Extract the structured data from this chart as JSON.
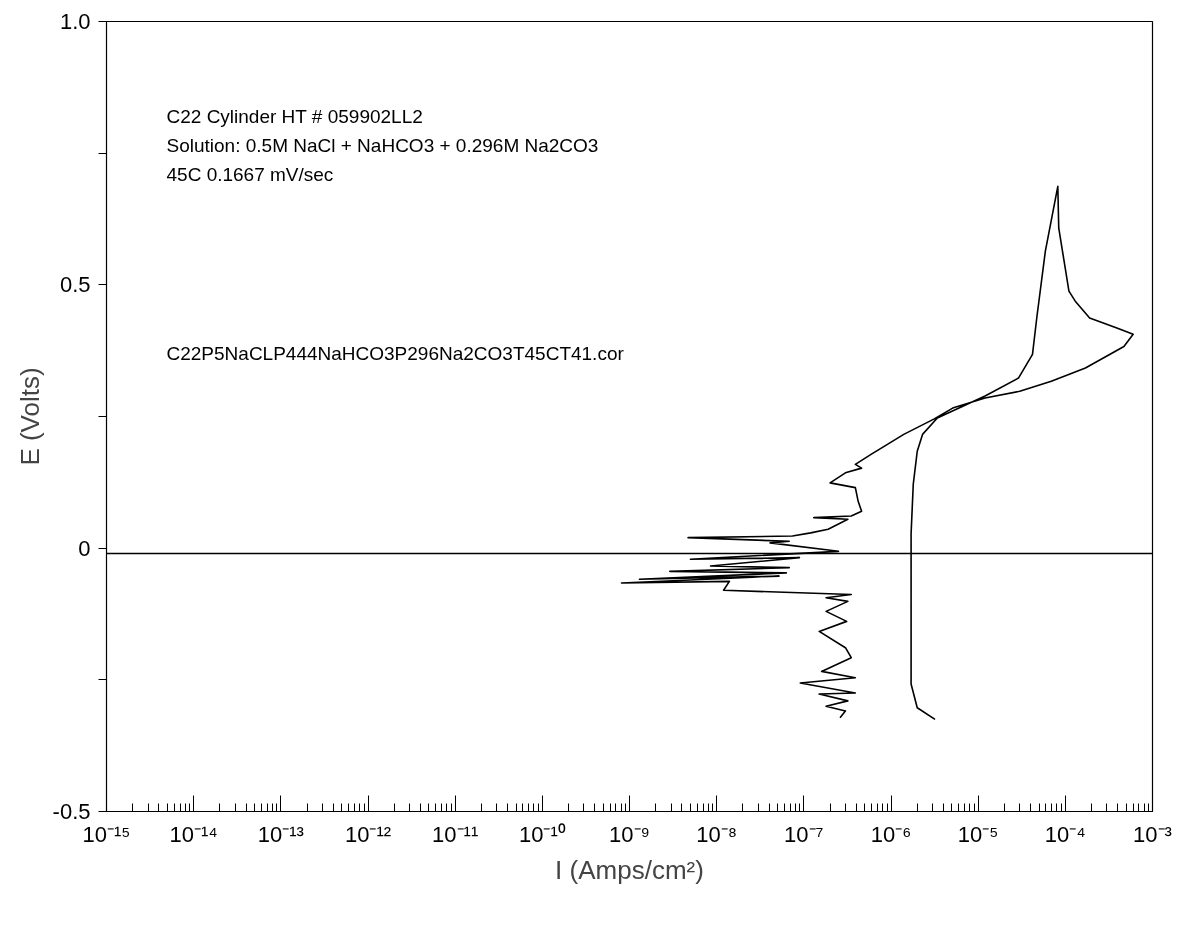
{
  "chart_data": {
    "type": "line",
    "xlabel": "I (Amps/cm²)",
    "ylabel": "E (Volts)",
    "annotations": [
      "C22 Cylinder HT # 059902LL2",
      "Solution: 0.5M NaCl + NaHCO3 + 0.296M Na2CO3",
      "45C   0.1667 mV/sec",
      "C22P5NaCLP444NaHCO3P296Na2CO3T45CT41.cor"
    ],
    "log": "x",
    "xlim": [
      1e-15,
      0.001
    ],
    "ylim": [
      -0.5,
      1.0
    ],
    "xticks": [
      {
        "value": 1e-15,
        "label": "10⁻¹⁵"
      },
      {
        "value": 1e-14,
        "label": "10⁻¹⁴"
      },
      {
        "value": 1e-13,
        "label": "10⁻¹³"
      },
      {
        "value": 1e-12,
        "label": "10⁻¹²"
      },
      {
        "value": 1e-11,
        "label": "10⁻¹¹"
      },
      {
        "value": 1e-10,
        "label": "10⁻¹⁰"
      },
      {
        "value": 1e-09,
        "label": "10⁻⁹"
      },
      {
        "value": 1e-08,
        "label": "10⁻⁸"
      },
      {
        "value": 1e-07,
        "label": "10⁻⁷"
      },
      {
        "value": 1e-06,
        "label": "10⁻⁶"
      },
      {
        "value": 1e-05,
        "label": "10⁻⁵"
      },
      {
        "value": 0.0001,
        "label": "10⁻⁴"
      },
      {
        "value": 0.001,
        "label": "10⁻³"
      }
    ],
    "yticks": [
      {
        "value": -0.5,
        "label": "-0.5"
      },
      {
        "value": -0.25,
        "label": null
      },
      0,
      {
        "value": 0.25,
        "label": null
      },
      0.5,
      {
        "value": 0.75,
        "label": null
      },
      {
        "value": 1.0,
        "label": "1.0"
      }
    ],
    "ref_lines": [
      {
        "axis": "y",
        "value": -0.01,
        "color": "#000000"
      }
    ],
    "series": [
      {
        "color": "#000000",
        "x": [
          2.6e-07,
          3e-07,
          1.8e-07,
          3.2e-07,
          1.5e-07,
          3.9e-07,
          9.1e-08,
          3.9e-07,
          1.6e-07,
          3.5e-07,
          3e-07,
          1.5e-07,
          3.1e-07,
          1.8e-07,
          3.2e-07,
          1.8e-07,
          3.5e-07,
          1.2e-08,
          1.4e-08,
          8.1e-10,
          5.2e-08,
          1.3e-09,
          6.3e-08,
          2.9e-09,
          6.8e-08,
          8.5e-09,
          8.9e-08,
          5e-09,
          2.5e-07,
          4.1e-08,
          6.8e-08,
          4.7e-09,
          7.4e-08,
          1.2e-07,
          1.9e-07,
          3.2e-07,
          1.3e-07,
          3.5e-07,
          4.6e-07,
          4.2e-07,
          3.9e-07,
          2e-07,
          3e-07,
          4.6e-07,
          3.9e-07,
          5.9e-07,
          9.1e-07,
          1.4e-06,
          3.1e-06,
          5.1e-06,
          1.2e-05,
          3e-05,
          6.9e-05,
          0.00017,
          0.00047,
          0.0006,
          0.00039,
          0.00019,
          0.00013,
          0.00011,
          8.4e-05,
          8.2e-05,
          5.9e-05,
          4.7e-05,
          4.2e-05,
          2.9e-05,
          1.2e-05,
          3.4e-06,
          2.3e-06,
          2e-06,
          1.8e-06,
          1.7e-06,
          1.7e-06,
          1.7e-06,
          2e-06,
          3.2e-06
        ],
        "values": [
          -0.322,
          -0.309,
          -0.3,
          -0.29,
          -0.277,
          -0.275,
          -0.256,
          -0.246,
          -0.234,
          -0.208,
          -0.189,
          -0.158,
          -0.139,
          -0.12,
          -0.101,
          -0.094,
          -0.088,
          -0.08,
          -0.063,
          -0.066,
          -0.053,
          -0.059,
          -0.047,
          -0.044,
          -0.037,
          -0.034,
          -0.018,
          -0.021,
          -0.006,
          0.01,
          0.013,
          0.02,
          0.023,
          0.029,
          0.036,
          0.055,
          0.058,
          0.061,
          0.07,
          0.089,
          0.115,
          0.124,
          0.143,
          0.152,
          0.159,
          0.178,
          0.197,
          0.216,
          0.245,
          0.266,
          0.285,
          0.298,
          0.317,
          0.342,
          0.383,
          0.406,
          0.418,
          0.437,
          0.469,
          0.488,
          0.608,
          0.687,
          0.564,
          0.437,
          0.368,
          0.323,
          0.289,
          0.247,
          0.216,
          0.184,
          0.121,
          0.027,
          -0.101,
          -0.258,
          -0.303,
          -0.325
        ]
      }
    ]
  }
}
